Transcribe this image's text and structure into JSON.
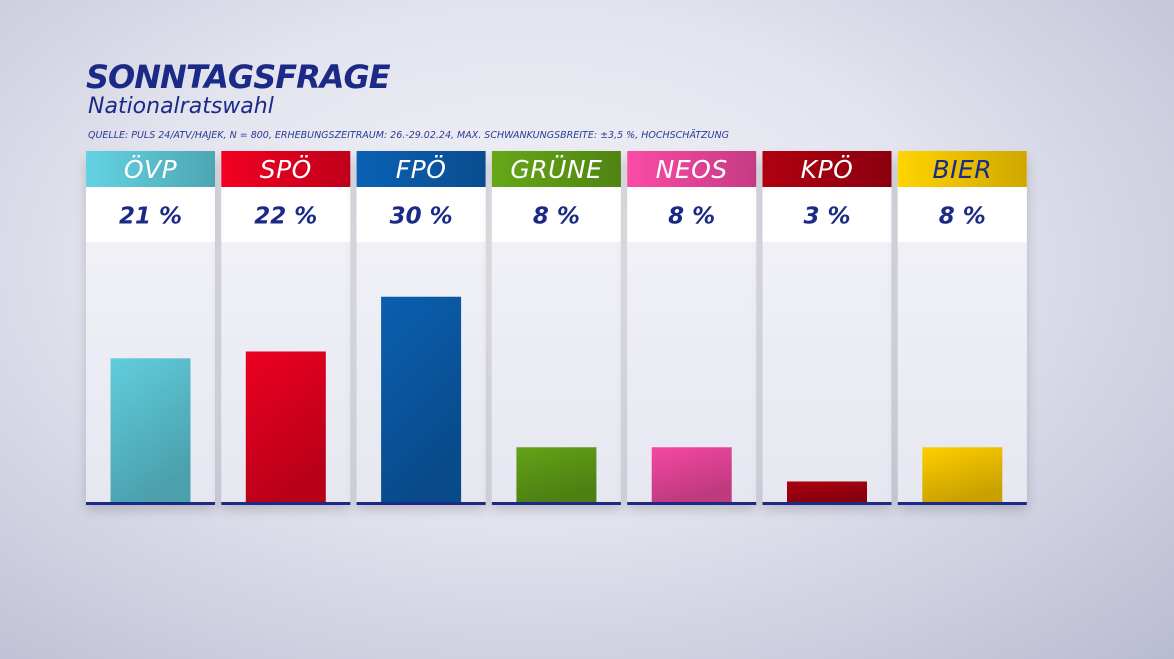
{
  "header": {
    "title": "SONNTAGSFRAGE",
    "subtitle": "Nationalratswahl",
    "source": "QUELLE: PULS 24/ATV/HAJEK, N = 800, ERHEBUNGSZEITRAUM: 26.-29.02.24, MAX. SCHWANKUNGSBREITE: ±3,5 %, HOCHSCHÄTZUNG"
  },
  "chart_data": {
    "type": "bar",
    "title": "SONNTAGSFRAGE",
    "subtitle": "Nationalratswahl",
    "categories": [
      "ÖVP",
      "SPÖ",
      "FPÖ",
      "GRÜNE",
      "NEOS",
      "KPÖ",
      "BIER"
    ],
    "values": [
      21,
      22,
      30,
      8,
      8,
      3,
      8
    ],
    "value_labels": [
      "21 %",
      "22 %",
      "30 %",
      "8 %",
      "8 %",
      "3 %",
      "8 %"
    ],
    "unit": "%",
    "colors": [
      "#5cc3d2",
      "#e1001f",
      "#0a5aa8",
      "#5e9b16",
      "#e8459a",
      "#a30010",
      "#f4c400"
    ],
    "header_text_colors": [
      "#ffffff",
      "#ffffff",
      "#ffffff",
      "#ffffff",
      "#ffffff",
      "#ffffff",
      "#1b2a86"
    ],
    "ylim": [
      0,
      38
    ],
    "grid": false,
    "legend": "none"
  }
}
